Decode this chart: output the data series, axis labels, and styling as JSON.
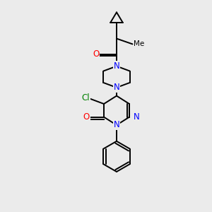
{
  "bg_color": "#ebebeb",
  "bond_color": "#000000",
  "N_color": "#0000ff",
  "O_color": "#ff0000",
  "Cl_color": "#008000",
  "figsize": [
    3.0,
    3.0
  ],
  "dpi": 100,
  "xlim": [
    0,
    10
  ],
  "ylim": [
    0,
    10
  ]
}
